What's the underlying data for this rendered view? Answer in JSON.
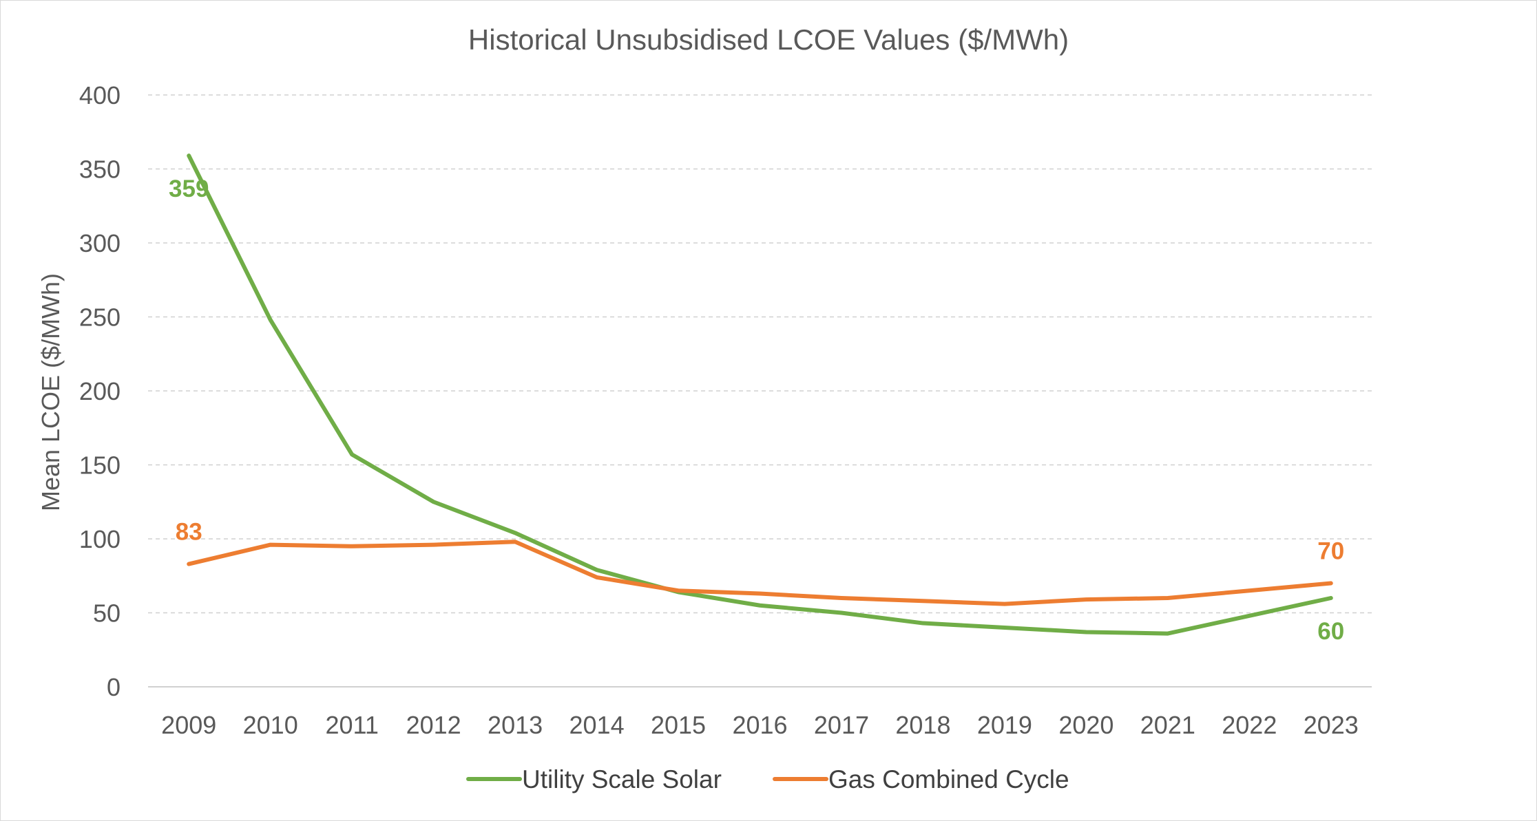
{
  "chart_data": {
    "type": "line",
    "title": "Historical Unsubsidised LCOE Values ($/MWh)",
    "xlabel": "",
    "ylabel": "Mean LCOE ($/MWh)",
    "ylim": [
      0,
      400
    ],
    "yticks": [
      0,
      50,
      100,
      150,
      200,
      250,
      300,
      350,
      400
    ],
    "grid": true,
    "legend_position": "bottom",
    "categories": [
      "2009",
      "2010",
      "2011",
      "2012",
      "2013",
      "2014",
      "2015",
      "2016",
      "2017",
      "2018",
      "2019",
      "2020",
      "2021",
      "2022",
      "2023"
    ],
    "series": [
      {
        "name": "Utility Scale Solar",
        "color": "#70ad47",
        "values": [
          359,
          248,
          157,
          125,
          104,
          79,
          64,
          55,
          50,
          43,
          40,
          37,
          36,
          48,
          60
        ],
        "labels": [
          {
            "index": 0,
            "text": "359"
          },
          {
            "index": 14,
            "text": "60"
          }
        ]
      },
      {
        "name": "Gas Combined Cycle",
        "color": "#ed7d31",
        "values": [
          83,
          96,
          95,
          96,
          98,
          74,
          65,
          63,
          60,
          58,
          56,
          59,
          60,
          65,
          70
        ],
        "labels": [
          {
            "index": 0,
            "text": "83"
          },
          {
            "index": 14,
            "text": "70"
          }
        ]
      }
    ]
  }
}
